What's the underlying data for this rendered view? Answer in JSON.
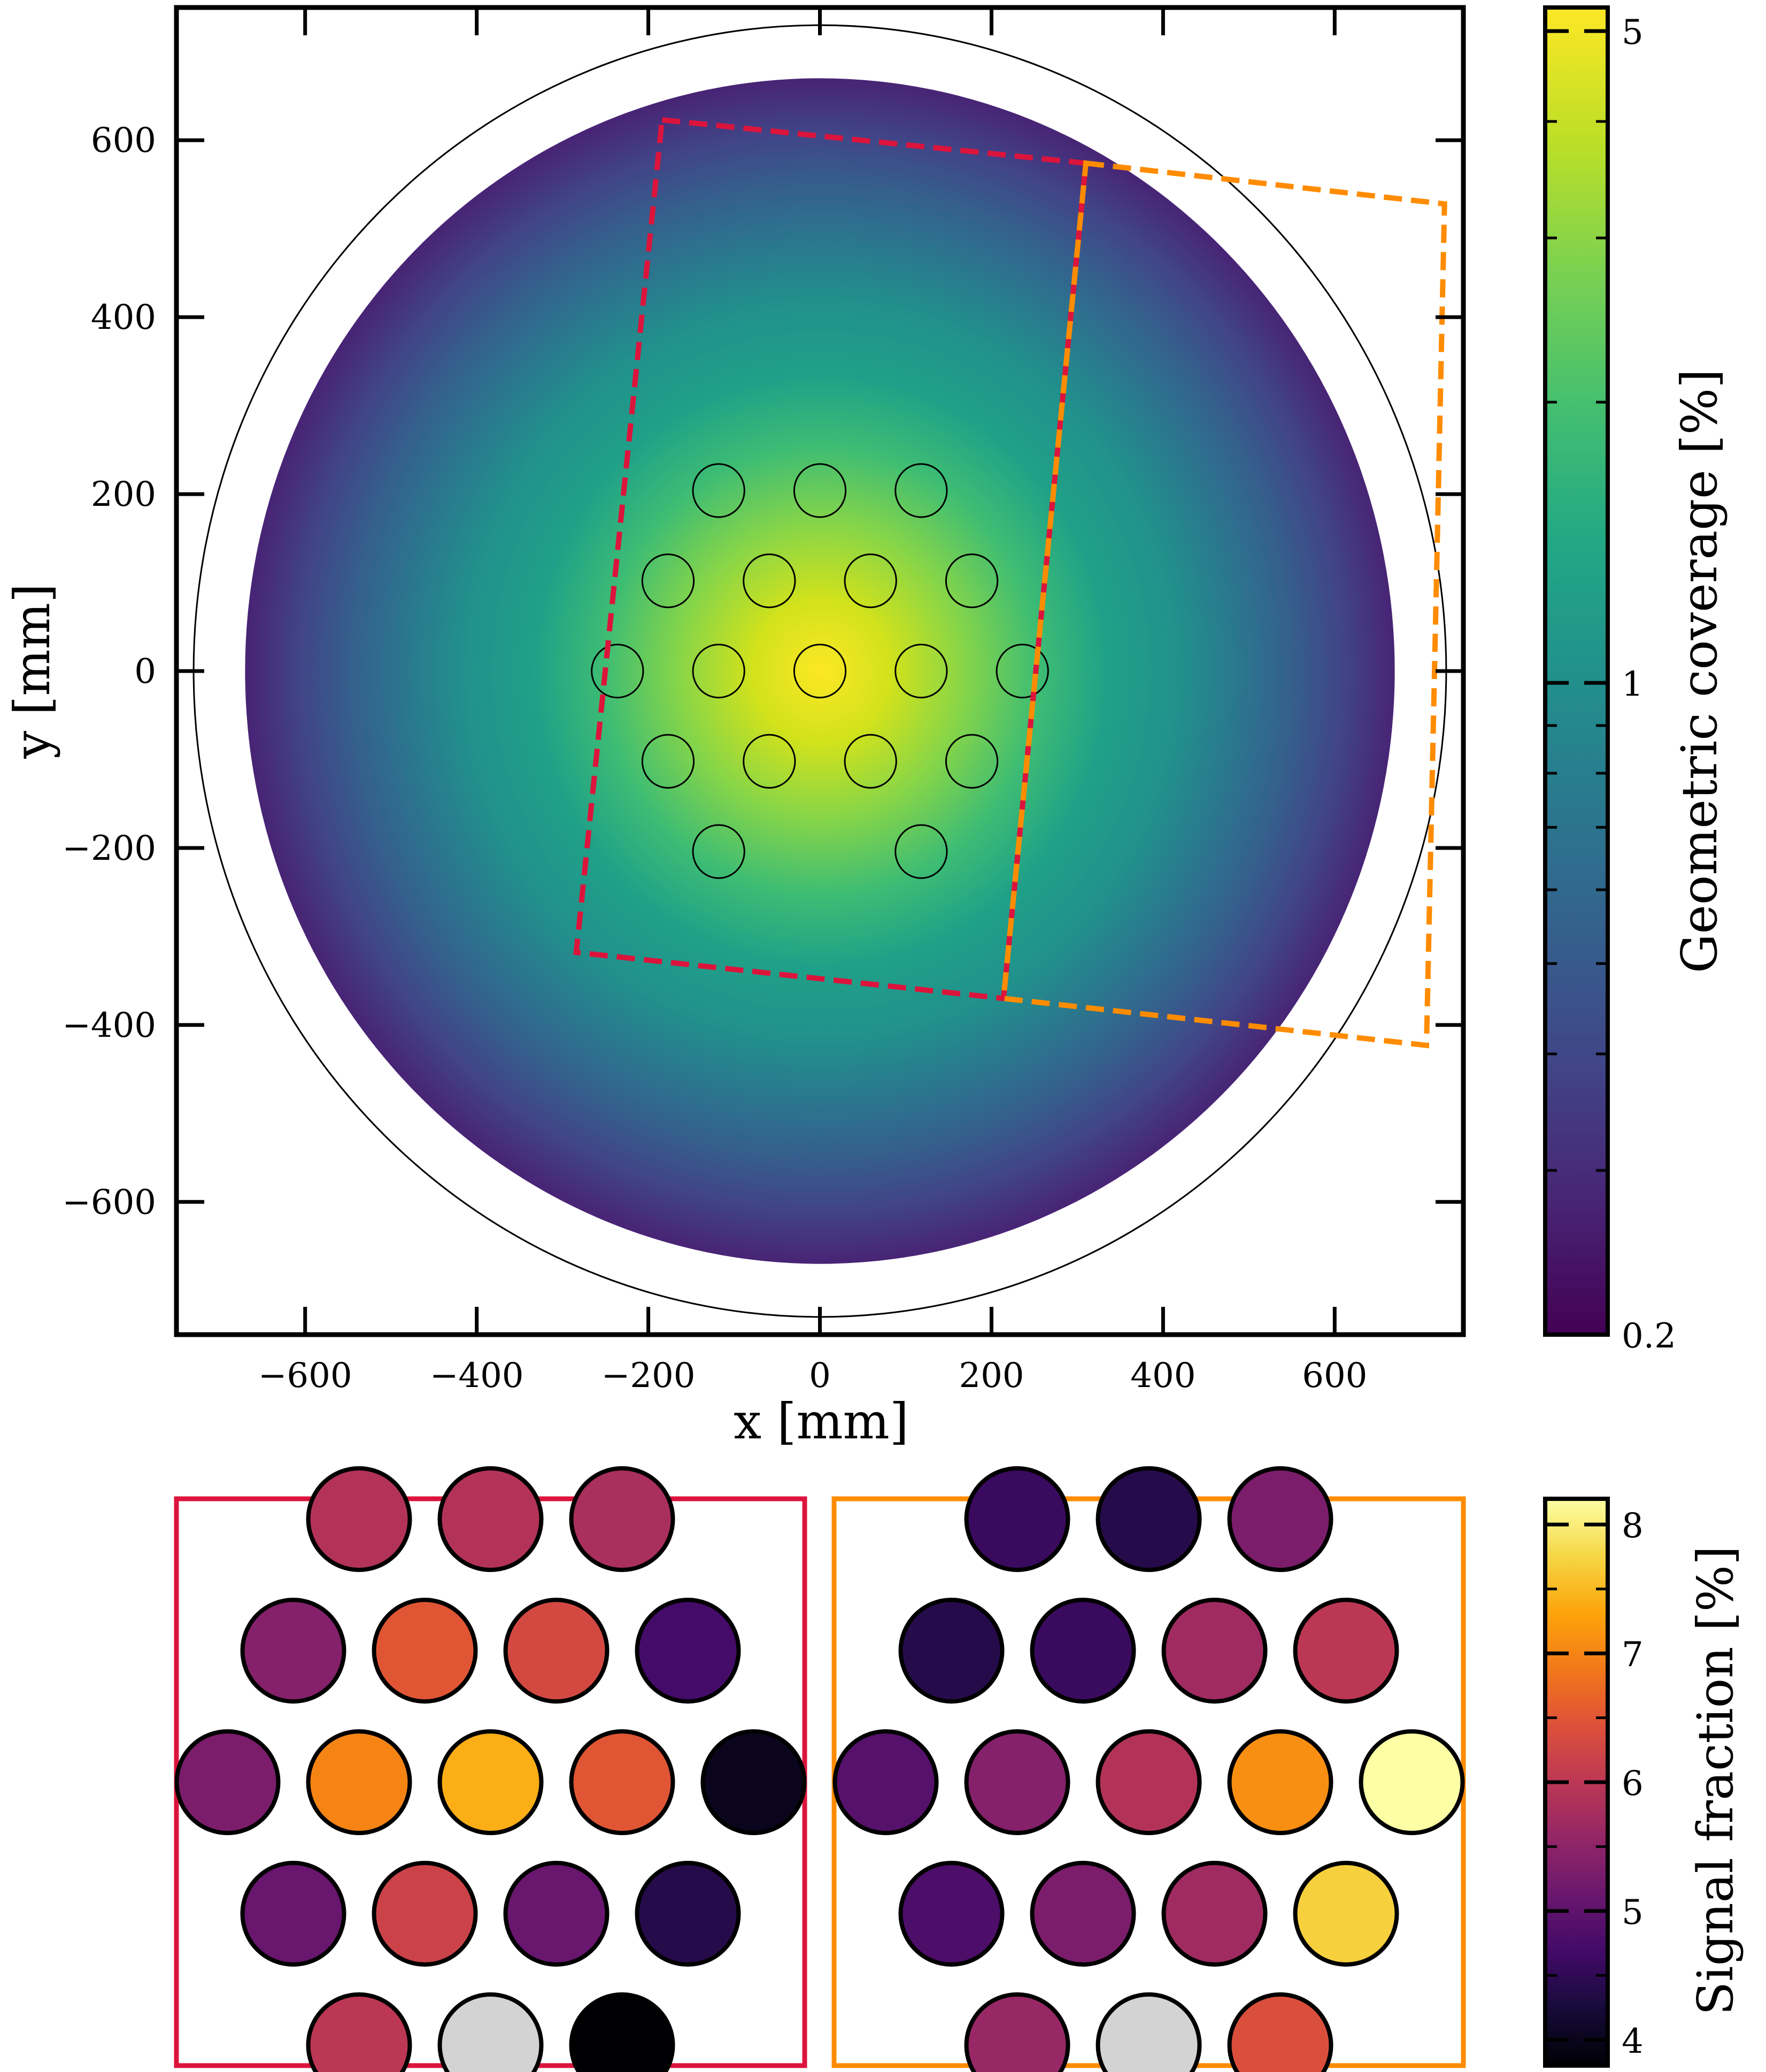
{
  "chart_data": [
    {
      "type": "heatmap",
      "title": "",
      "xlabel": "x [mm]",
      "ylabel": "y [mm]",
      "xlim": [
        -750,
        750
      ],
      "ylim": [
        -750,
        750
      ],
      "xticks": [
        -600,
        -400,
        -200,
        0,
        200,
        400,
        600
      ],
      "yticks": [
        -600,
        -400,
        -200,
        0,
        200,
        400,
        600
      ],
      "xtick_labels": [
        "−600",
        "−400",
        "−200",
        "0",
        "200",
        "400",
        "600"
      ],
      "ytick_labels": [
        "−600",
        "−400",
        "−200",
        "0",
        "200",
        "400",
        "600"
      ],
      "grid": false,
      "colorbar": {
        "label": "Geometric coverage [%]",
        "scale": "log",
        "range": [
          0.2,
          5.3
        ],
        "ticks": [
          0.2,
          1,
          5
        ],
        "tick_labels": [
          "0.2",
          "1",
          "5"
        ],
        "colormap": "viridis"
      },
      "coverage_disk": {
        "radius_mm": 670,
        "peak_percent": 5.3,
        "edge_percent": 0.2
      },
      "outer_circle": {
        "radius_mm": 730
      },
      "sensors": {
        "radius_mm": 30,
        "positions_mm": [
          [
            -118,
            204
          ],
          [
            0,
            204
          ],
          [
            118,
            204
          ],
          [
            -177,
            102
          ],
          [
            -59,
            102
          ],
          [
            59,
            102
          ],
          [
            177,
            102
          ],
          [
            -236,
            0
          ],
          [
            -118,
            0
          ],
          [
            0,
            0
          ],
          [
            118,
            0
          ],
          [
            236,
            0
          ],
          [
            -177,
            -102
          ],
          [
            -59,
            -102
          ],
          [
            59,
            -102
          ],
          [
            177,
            -102
          ],
          [
            -118,
            -204
          ],
          [
            118,
            -204
          ]
        ]
      },
      "footprints": [
        {
          "name": "red",
          "color": "#dc143c",
          "corners_mm": [
            [
              -184,
              623
            ],
            [
              310,
              574
            ],
            [
              214,
              -370
            ],
            [
              -284,
              -318
            ]
          ]
        },
        {
          "name": "orange",
          "color": "#ff8c00",
          "corners_mm": [
            [
              310,
              574
            ],
            [
              728,
              528
            ],
            [
              707,
              -423
            ],
            [
              214,
              -370
            ]
          ]
        }
      ]
    },
    {
      "type": "heatmap",
      "title": "",
      "colorbar": {
        "label": "Signal fraction [%]",
        "range": [
          3.8,
          8.2
        ],
        "ticks": [
          4,
          5,
          6,
          7,
          8
        ],
        "tick_labels": [
          "4",
          "5",
          "6",
          "7",
          "8"
        ],
        "colormap": "inferno"
      },
      "missing_color": "#d3d3d3",
      "panels": [
        {
          "name": "red",
          "border_color": "#dc143c",
          "rows": [
            [
              5.9,
              5.9,
              5.8
            ],
            [
              5.4,
              6.5,
              6.3,
              4.7
            ],
            [
              5.3,
              7.0,
              7.4,
              6.5,
              4.0
            ],
            [
              5.1,
              6.2,
              5.1,
              4.4
            ],
            [
              6.0,
              null,
              3.8
            ]
          ]
        },
        {
          "name": "orange",
          "border_color": "#ff8c00",
          "rows": [
            [
              4.6,
              4.4,
              5.3
            ],
            [
              4.4,
              4.6,
              5.7,
              6.0
            ],
            [
              4.9,
              5.4,
              5.9,
              7.1,
              8.2
            ],
            [
              4.8,
              5.3,
              5.7,
              7.7
            ],
            [
              5.6,
              null,
              6.4
            ]
          ]
        }
      ]
    }
  ]
}
